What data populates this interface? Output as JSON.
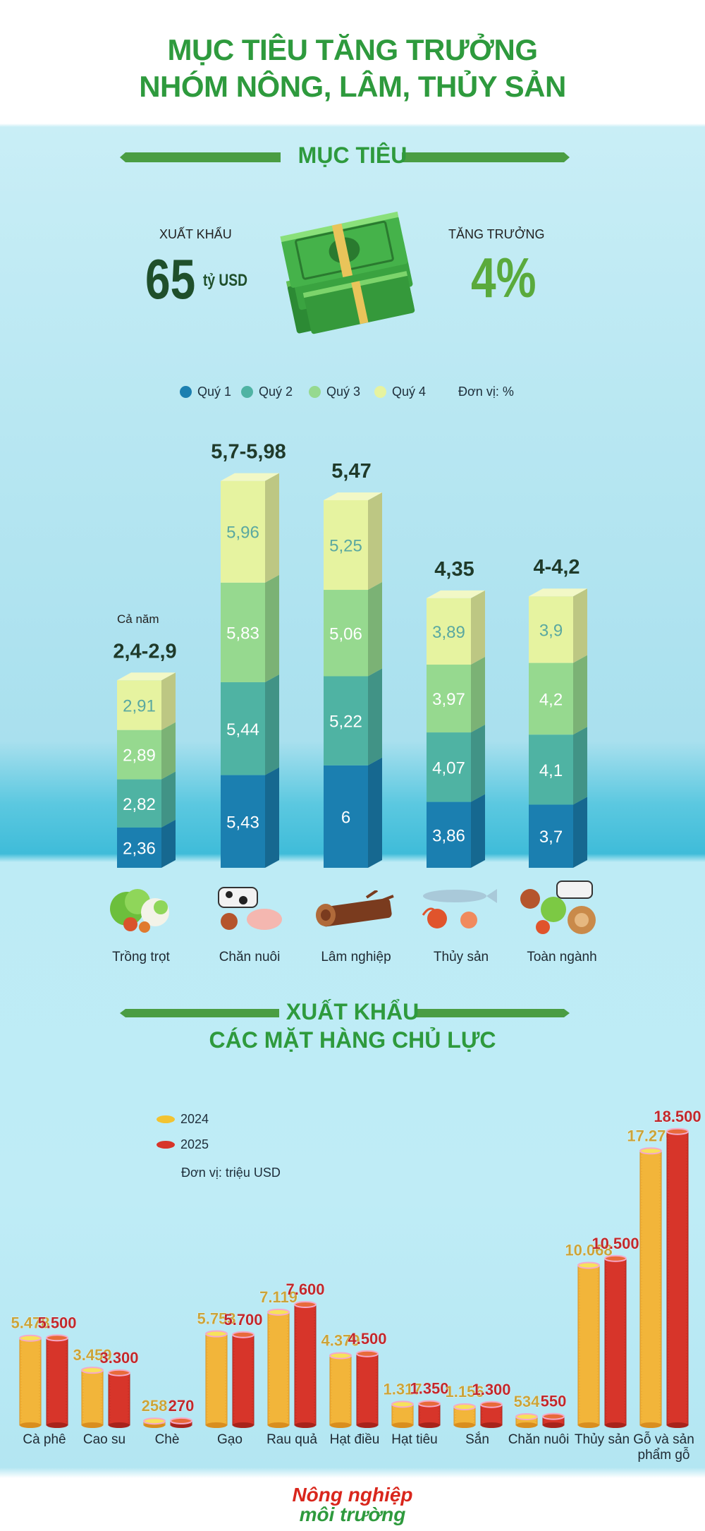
{
  "header": {
    "title_line1": "MỤC TIÊU TĂNG TRƯỞNG",
    "title_line2": "NHÓM NÔNG, LÂM, THỦY SẢN"
  },
  "targets": {
    "section_title": "MỤC TIÊU",
    "export_label": "XUẤT KHẨU",
    "export_value": "65",
    "export_unit": "tỷ USD",
    "growth_label": "TĂNG TRƯỞNG",
    "growth_value": "4%"
  },
  "growth_chart": {
    "legend": [
      "Quý 1",
      "Quý 2",
      "Quý 3",
      "Quý 4"
    ],
    "legend_colors": [
      "#1b7fb0",
      "#4fb3a3",
      "#96d98f",
      "#e6f3a0"
    ],
    "unit": "Đơn vị: %",
    "year_label": "Cả năm",
    "categories": [
      "Trồng trọt",
      "Chăn nuôi",
      "Lâm nghiệp",
      "Thủy sản",
      "Toàn ngành"
    ],
    "annual": [
      "2,4-2,9",
      "5,7-5,98",
      "5,47",
      "4,35",
      "4-4,2"
    ]
  },
  "export_section": {
    "title_line1": "XUẤT KHẨU",
    "title_line2": "CÁC MẶT HÀNG CHỦ LỰC",
    "legend_2024": "2024",
    "legend_2025": "2025",
    "unit": "Đơn vị: triệu USD",
    "labels": [
      "Cà phê",
      "Cao su",
      "Chè",
      "Gạo",
      "Rau quả",
      "Hạt điều",
      "Hạt tiêu",
      "Sắn",
      "Chăn nuôi",
      "Thủy sản",
      "Gỗ và sản phẩm gỗ"
    ]
  },
  "chart_data": [
    {
      "type": "bar",
      "stacked": true,
      "categories": [
        "Trồng trọt",
        "Chăn nuôi",
        "Lâm nghiệp",
        "Thủy sản",
        "Toàn ngành"
      ],
      "series": [
        {
          "name": "Quý 1",
          "values": [
            2.36,
            5.43,
            6,
            3.86,
            3.7
          ],
          "labels": [
            "2,36",
            "5,43",
            "6",
            "3,86",
            "3,7"
          ]
        },
        {
          "name": "Quý 2",
          "values": [
            2.82,
            5.44,
            5.22,
            4.07,
            4.1
          ],
          "labels": [
            "2,82",
            "5,44",
            "5,22",
            "4,07",
            "4,1"
          ]
        },
        {
          "name": "Quý 3",
          "values": [
            2.89,
            5.83,
            5.06,
            3.97,
            4.2
          ],
          "labels": [
            "2,89",
            "5,83",
            "5,06",
            "3,97",
            "4,2"
          ]
        },
        {
          "name": "Quý 4",
          "values": [
            2.91,
            5.96,
            5.25,
            3.89,
            3.9
          ],
          "labels": [
            "2,91",
            "5,96",
            "5,25",
            "3,89",
            "3,9"
          ]
        }
      ],
      "annual": [
        "2,4-2,9",
        "5,7-5,98",
        "5,47",
        "4,35",
        "4-4,2"
      ],
      "ylabel": "Đơn vị: %"
    },
    {
      "type": "bar",
      "categories": [
        "Cà phê",
        "Cao su",
        "Chè",
        "Gạo",
        "Rau quả",
        "Hạt điều",
        "Hạt tiêu",
        "Sắn",
        "Chăn nuôi",
        "Thủy sản",
        "Gỗ và sản phẩm gỗ"
      ],
      "series": [
        {
          "name": "2024",
          "values": [
            5478,
            3459,
            258,
            5753,
            7119,
            4379,
            1317,
            1156,
            534,
            10068,
            17276
          ],
          "labels": [
            "5.478",
            "3.459",
            "258",
            "5.753",
            "7.119",
            "4.379",
            "1.317",
            "1.156",
            "534",
            "10.068",
            "17.276"
          ]
        },
        {
          "name": "2025",
          "values": [
            5500,
            3300,
            270,
            5700,
            7600,
            4500,
            1350,
            1300,
            550,
            10500,
            18500
          ],
          "labels": [
            "5.500",
            "3.300",
            "270",
            "5.700",
            "7.600",
            "4.500",
            "1.350",
            "1.300",
            "550",
            "10.500",
            "18.500"
          ]
        }
      ],
      "ylabel": "Đơn vị: triệu USD"
    }
  ],
  "footer": {
    "logo_line1": "Nông nghiệp",
    "logo_line2": "môi trường"
  }
}
